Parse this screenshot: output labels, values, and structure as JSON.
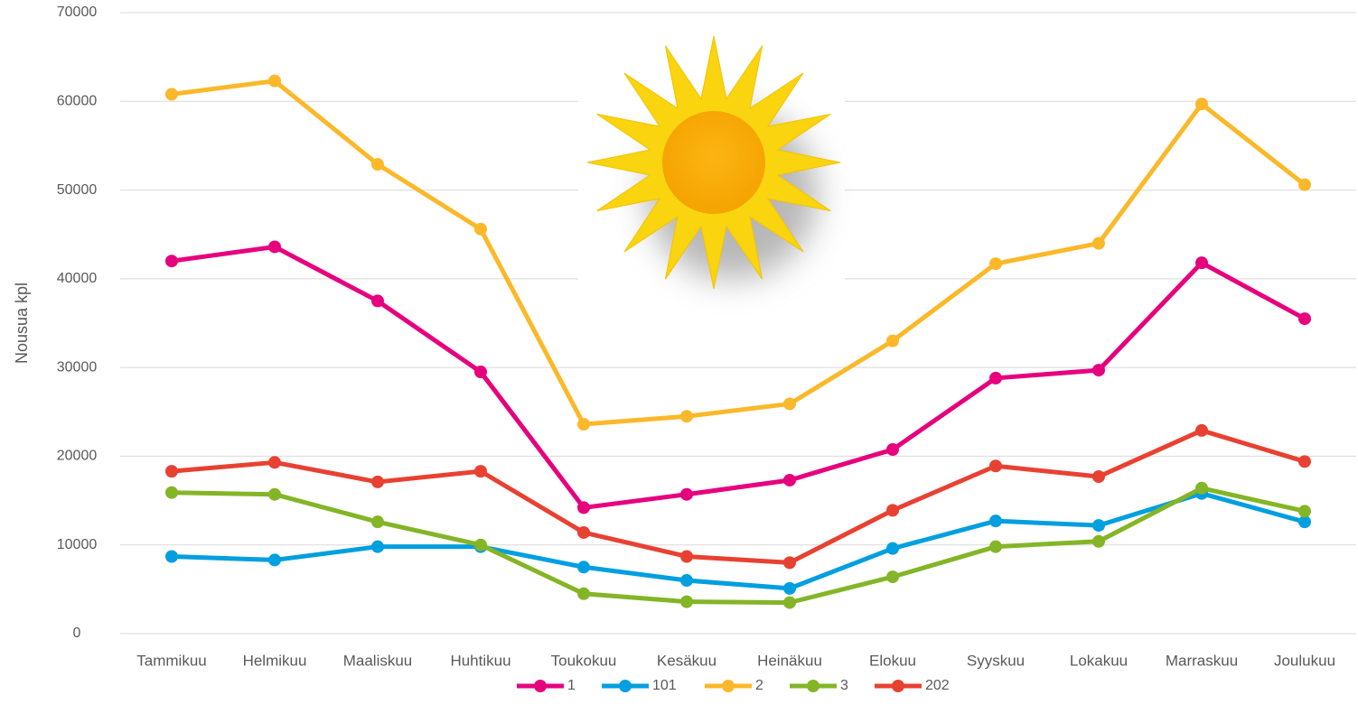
{
  "chart_data": {
    "type": "line",
    "y_label": "Nousua kpl",
    "categories": [
      "Tammikuu",
      "Helmikuu",
      "Maaliskuu",
      "Huhtikuu",
      "Toukokuu",
      "Kesäkuu",
      "Heinäkuu",
      "Elokuu",
      "Syyskuu",
      "Lokakuu",
      "Marraskuu",
      "Joulukuu"
    ],
    "series": [
      {
        "name": "1",
        "color": "#e6007e",
        "values": [
          42000,
          43600,
          37500,
          29500,
          14200,
          15700,
          17300,
          20750,
          28800,
          29700,
          41800,
          35500
        ]
      },
      {
        "name": "101",
        "color": "#009fdf",
        "values": [
          8700,
          8300,
          9800,
          9800,
          7500,
          6000,
          5100,
          9600,
          12700,
          12200,
          15800,
          12600
        ]
      },
      {
        "name": "2",
        "color": "#fbb829",
        "values": [
          60800,
          62300,
          52900,
          45600,
          23600,
          24500,
          25900,
          33000,
          41700,
          44000,
          59700,
          50600
        ]
      },
      {
        "name": "3",
        "color": "#84b527",
        "values": [
          15900,
          15700,
          12600,
          10000,
          4500,
          3600,
          3500,
          6400,
          9800,
          10400,
          16400,
          13800
        ]
      },
      {
        "name": "202",
        "color": "#e84132",
        "values": [
          18300,
          19300,
          17100,
          18300,
          11400,
          8700,
          8000,
          13900,
          18900,
          17700,
          22900,
          19400
        ]
      }
    ],
    "ylim": [
      0,
      70000
    ],
    "yticks": [
      0,
      10000,
      20000,
      30000,
      40000,
      50000,
      60000,
      70000
    ],
    "grid": true,
    "legend": "bottom"
  }
}
